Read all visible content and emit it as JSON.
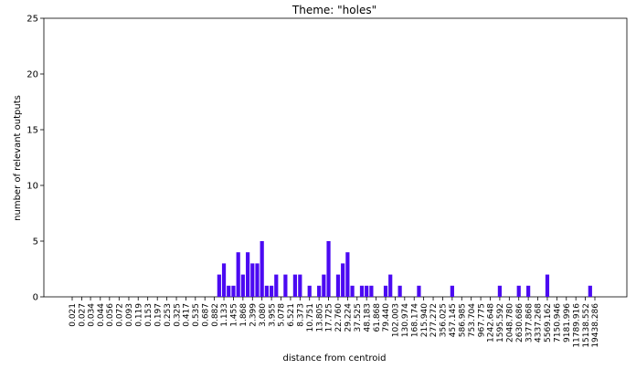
{
  "chart_data": {
    "type": "bar",
    "title": "Theme: \"holes\"",
    "xlabel": "distance from centroid",
    "ylabel": "number of relevant outputs",
    "ylim": [
      0,
      25
    ],
    "yticks": [
      0,
      5,
      10,
      15,
      20,
      25
    ],
    "grid": false,
    "bar_color": "#4b0af2",
    "x_tick_labels": [
      "0.021",
      "0.027",
      "0.034",
      "0.044",
      "0.056",
      "0.072",
      "0.093",
      "0.119",
      "0.153",
      "0.197",
      "0.253",
      "0.325",
      "0.417",
      "0.535",
      "0.687",
      "0.882",
      "1.133",
      "1.455",
      "1.868",
      "2.399",
      "3.080",
      "3.955",
      "5.078",
      "6.521",
      "8.373",
      "10.751",
      "13.805",
      "17.725",
      "22.760",
      "29.224",
      "37.525",
      "48.183",
      "61.868",
      "79.440",
      "102.003",
      "130.974",
      "168.174",
      "215.940",
      "277.272",
      "356.025",
      "457.145",
      "586.985",
      "753.704",
      "967.775",
      "1242.648",
      "1595.592",
      "2048.780",
      "2630.686",
      "3377.868",
      "4337.268",
      "5569.162",
      "7150.946",
      "9181.996",
      "11789.916",
      "15138.552",
      "19438.286"
    ],
    "bars": [
      {
        "x": 1.0,
        "y": 2
      },
      {
        "x": 1.133,
        "y": 3
      },
      {
        "x": 1.283,
        "y": 1
      },
      {
        "x": 1.455,
        "y": 1
      },
      {
        "x": 1.65,
        "y": 4
      },
      {
        "x": 1.868,
        "y": 2
      },
      {
        "x": 2.12,
        "y": 4
      },
      {
        "x": 2.399,
        "y": 3
      },
      {
        "x": 2.72,
        "y": 3
      },
      {
        "x": 3.08,
        "y": 5
      },
      {
        "x": 3.49,
        "y": 1
      },
      {
        "x": 3.955,
        "y": 1
      },
      {
        "x": 4.48,
        "y": 2
      },
      {
        "x": 5.71,
        "y": 2
      },
      {
        "x": 7.35,
        "y": 2
      },
      {
        "x": 8.373,
        "y": 2
      },
      {
        "x": 10.751,
        "y": 1
      },
      {
        "x": 13.805,
        "y": 1
      },
      {
        "x": 15.64,
        "y": 2
      },
      {
        "x": 17.725,
        "y": 5
      },
      {
        "x": 22.76,
        "y": 2
      },
      {
        "x": 25.79,
        "y": 3
      },
      {
        "x": 29.224,
        "y": 4
      },
      {
        "x": 33.12,
        "y": 1
      },
      {
        "x": 42.53,
        "y": 1
      },
      {
        "x": 48.183,
        "y": 1
      },
      {
        "x": 54.6,
        "y": 1
      },
      {
        "x": 79.44,
        "y": 1
      },
      {
        "x": 90.0,
        "y": 2
      },
      {
        "x": 115.6,
        "y": 1
      },
      {
        "x": 190.6,
        "y": 1
      },
      {
        "x": 457.145,
        "y": 1
      },
      {
        "x": 1595.592,
        "y": 1
      },
      {
        "x": 2630.686,
        "y": 1
      },
      {
        "x": 3377.868,
        "y": 1
      },
      {
        "x": 5569.162,
        "y": 2
      },
      {
        "x": 17167.0,
        "y": 1
      }
    ]
  }
}
